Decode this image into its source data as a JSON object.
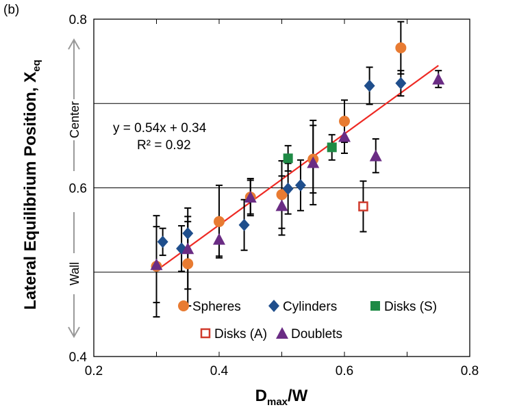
{
  "panel_label": "(b)",
  "colors": {
    "spheres": "#e87b32",
    "cylinders": "#1f4e8c",
    "disks_s": "#1e8a45",
    "disks_a": "#d03a2c",
    "doublets": "#6a2c84",
    "fit": "#ee2a24"
  },
  "chart_data": {
    "type": "scatter",
    "xlabel": {
      "main": "D",
      "sub": "max",
      "rest": "/W"
    },
    "ylabel": {
      "main": "Lateral Equilibrium Position, X",
      "sub": "eq"
    },
    "xlim": [
      0.2,
      0.8
    ],
    "ylim": [
      0.4,
      0.8
    ],
    "xticks": [
      "0.2",
      "0.4",
      "0.6",
      "0.8"
    ],
    "yticks": [
      "0.4",
      "0.6",
      "0.8"
    ],
    "gridlines_y": [
      0.5,
      0.6,
      0.7
    ],
    "region_labels": {
      "center": "Center",
      "wall": "Wall"
    },
    "fit": {
      "equation": "y = 0.54x + 0.34",
      "r2": "R² = 0.92",
      "slope": 0.54,
      "intercept": 0.34,
      "x_range": [
        0.3,
        0.75
      ]
    },
    "legend_position": "bottom-center",
    "series": [
      {
        "name": "Spheres",
        "marker": "circle",
        "x": [
          0.3,
          0.35,
          0.4,
          0.45,
          0.5,
          0.55,
          0.6,
          0.69
        ],
        "y": [
          0.507,
          0.51,
          0.56,
          0.589,
          0.592,
          0.634,
          0.679,
          0.766
        ],
        "err": [
          0.06,
          0.05,
          0.043,
          0.022,
          0.04,
          0.04,
          0.025,
          0.031
        ]
      },
      {
        "name": "Cylinders",
        "marker": "diamond",
        "x": [
          0.31,
          0.34,
          0.35,
          0.44,
          0.51,
          0.53,
          0.64,
          0.69
        ],
        "y": [
          0.536,
          0.528,
          0.546,
          0.556,
          0.599,
          0.603,
          0.721,
          0.724
        ],
        "err": [
          0.016,
          0.027,
          0.02,
          0.03,
          0.03,
          0.03,
          0.022,
          0.015
        ]
      },
      {
        "name": "Disks (S)",
        "marker": "square",
        "x": [
          0.51,
          0.58
        ],
        "y": [
          0.635,
          0.648
        ],
        "err": [
          0.015,
          0.015
        ]
      },
      {
        "name": "Disks (A)",
        "marker": "open-square",
        "x": [
          0.63
        ],
        "y": [
          0.578
        ],
        "err": [
          0.03
        ]
      },
      {
        "name": "Doublets",
        "marker": "triangle",
        "x": [
          0.3,
          0.35,
          0.4,
          0.45,
          0.5,
          0.55,
          0.6,
          0.65,
          0.75
        ],
        "y": [
          0.509,
          0.528,
          0.539,
          0.589,
          0.579,
          0.63,
          0.661,
          0.638,
          0.729
        ],
        "err": [
          0.045,
          0.048,
          0.02,
          0.02,
          0.035,
          0.05,
          0.02,
          0.02,
          0.01
        ]
      }
    ]
  }
}
